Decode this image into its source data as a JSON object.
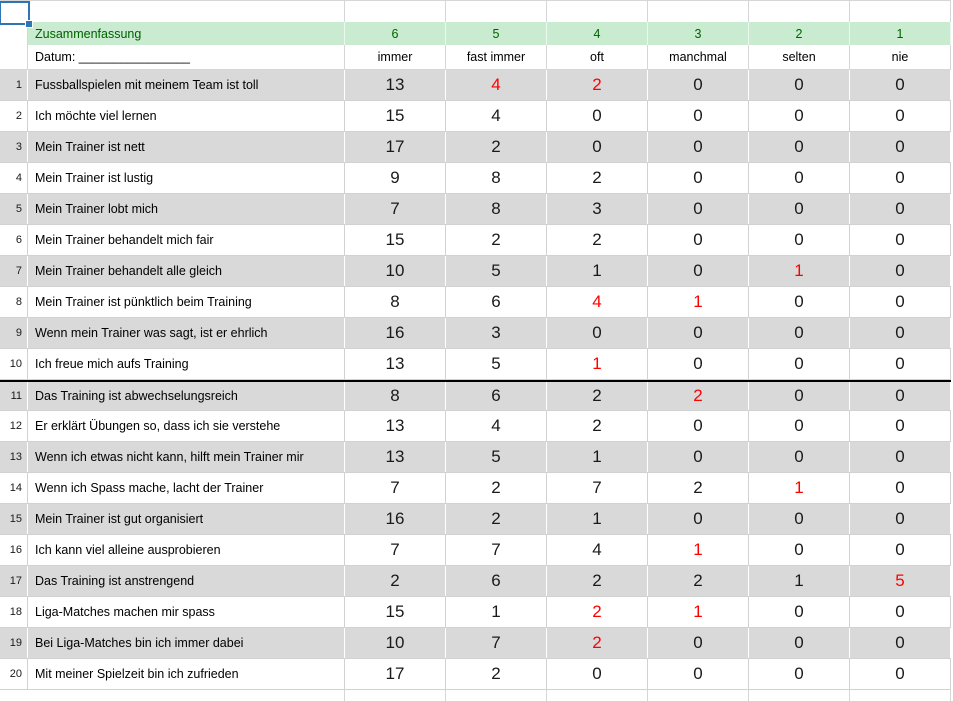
{
  "app": {
    "type": "spreadsheet-grid"
  },
  "selection": {
    "cell_ref": "A1"
  },
  "colors": {
    "header_fill": "#c9ebd0",
    "header_text": "#006100",
    "row_shade": "#d9d9d9",
    "red_value": "#ff0000",
    "gridline": "#d2d2d2",
    "selection_border": "#2e75b6",
    "thick_border": "#000000"
  },
  "header": {
    "title": "Zusammenfassung",
    "scale": [
      "6",
      "5",
      "4",
      "3",
      "2",
      "1"
    ]
  },
  "subheader": {
    "date_label": "Datum: ________________",
    "scale_labels": [
      "immer",
      "fast immer",
      "oft",
      "manchmal",
      "selten",
      "nie"
    ]
  },
  "table": {
    "thick_top_row_index": 10,
    "rows": [
      {
        "num": "1",
        "question": "Fussballspielen mit meinem Team ist toll",
        "values": [
          "13",
          "4",
          "2",
          "0",
          "0",
          "0"
        ],
        "red": [
          1,
          2
        ]
      },
      {
        "num": "2",
        "question": "Ich möchte viel lernen",
        "values": [
          "15",
          "4",
          "0",
          "0",
          "0",
          "0"
        ],
        "red": []
      },
      {
        "num": "3",
        "question": "Mein Trainer ist nett",
        "values": [
          "17",
          "2",
          "0",
          "0",
          "0",
          "0"
        ],
        "red": []
      },
      {
        "num": "4",
        "question": "Mein Trainer ist lustig",
        "values": [
          "9",
          "8",
          "2",
          "0",
          "0",
          "0"
        ],
        "red": []
      },
      {
        "num": "5",
        "question": "Mein Trainer lobt mich",
        "values": [
          "7",
          "8",
          "3",
          "0",
          "0",
          "0"
        ],
        "red": []
      },
      {
        "num": "6",
        "question": "Mein Trainer behandelt mich fair",
        "values": [
          "15",
          "2",
          "2",
          "0",
          "0",
          "0"
        ],
        "red": []
      },
      {
        "num": "7",
        "question": "Mein Trainer behandelt alle gleich",
        "values": [
          "10",
          "5",
          "1",
          "0",
          "1",
          "0"
        ],
        "red": [
          4
        ]
      },
      {
        "num": "8",
        "question": "Mein Trainer ist pünktlich beim Training",
        "values": [
          "8",
          "6",
          "4",
          "1",
          "0",
          "0"
        ],
        "red": [
          2,
          3
        ]
      },
      {
        "num": "9",
        "question": "Wenn mein Trainer was sagt, ist er ehrlich",
        "values": [
          "16",
          "3",
          "0",
          "0",
          "0",
          "0"
        ],
        "red": []
      },
      {
        "num": "10",
        "question": "Ich freue mich aufs Training",
        "values": [
          "13",
          "5",
          "1",
          "0",
          "0",
          "0"
        ],
        "red": [
          2
        ]
      },
      {
        "num": "11",
        "question": "Das Training ist abwechselungsreich",
        "values": [
          "8",
          "6",
          "2",
          "2",
          "0",
          "0"
        ],
        "red": [
          3
        ]
      },
      {
        "num": "12",
        "question": "Er erklärt Übungen so, dass ich sie verstehe",
        "values": [
          "13",
          "4",
          "2",
          "0",
          "0",
          "0"
        ],
        "red": []
      },
      {
        "num": "13",
        "question": "Wenn ich etwas nicht kann, hilft mein Trainer mir",
        "values": [
          "13",
          "5",
          "1",
          "0",
          "0",
          "0"
        ],
        "red": []
      },
      {
        "num": "14",
        "question": "Wenn ich Spass mache, lacht der Trainer",
        "values": [
          "7",
          "2",
          "7",
          "2",
          "1",
          "0"
        ],
        "red": [
          4
        ]
      },
      {
        "num": "15",
        "question": "Mein Trainer ist gut organisiert",
        "values": [
          "16",
          "2",
          "1",
          "0",
          "0",
          "0"
        ],
        "red": []
      },
      {
        "num": "16",
        "question": "Ich kann viel alleine ausprobieren",
        "values": [
          "7",
          "7",
          "4",
          "1",
          "0",
          "0"
        ],
        "red": [
          3
        ]
      },
      {
        "num": "17",
        "question": "Das Training ist anstrengend",
        "values": [
          "2",
          "6",
          "2",
          "2",
          "1",
          "5"
        ],
        "red": [
          5
        ]
      },
      {
        "num": "18",
        "question": "Liga-Matches machen mir spass",
        "values": [
          "15",
          "1",
          "2",
          "1",
          "0",
          "0"
        ],
        "red": [
          2,
          3
        ]
      },
      {
        "num": "19",
        "question": "Bei Liga-Matches bin ich immer dabei",
        "values": [
          "10",
          "7",
          "2",
          "0",
          "0",
          "0"
        ],
        "red": [
          2
        ]
      },
      {
        "num": "20",
        "question": "Mit meiner Spielzeit bin ich zufrieden",
        "values": [
          "17",
          "2",
          "0",
          "0",
          "0",
          "0"
        ],
        "red": []
      }
    ]
  }
}
